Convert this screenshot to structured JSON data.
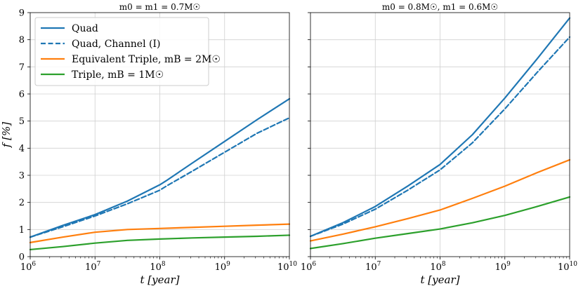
{
  "figure": {
    "ylabel": "f [%]",
    "xlabel": "t [year]"
  },
  "chart_data": [
    {
      "type": "line",
      "title": "m0 = m1 = 0.7M☉",
      "xlabel": "t [year]",
      "ylabel": "f [%]",
      "xscale": "log",
      "xlim_log10": [
        6,
        10
      ],
      "ylim": [
        0,
        9
      ],
      "yticks": [
        "0",
        "1",
        "2",
        "3",
        "4",
        "5",
        "6",
        "7",
        "8",
        "9"
      ],
      "xticks": [
        {
          "base": "10",
          "exp": "6"
        },
        {
          "base": "10",
          "exp": "7"
        },
        {
          "base": "10",
          "exp": "8"
        },
        {
          "base": "10",
          "exp": "9"
        },
        {
          "base": "10",
          "exp": "10"
        }
      ],
      "grid": true,
      "legend_position": "top-left",
      "series": [
        {
          "name": "Quad",
          "color": "#1f77b4",
          "dash": "solid",
          "x_log10": [
            6.0,
            6.5,
            7.0,
            7.5,
            8.0,
            8.1,
            8.5,
            9.0,
            9.5,
            10.0
          ],
          "y": [
            0.72,
            1.15,
            1.55,
            2.05,
            2.65,
            2.8,
            3.45,
            4.25,
            5.05,
            5.82
          ]
        },
        {
          "name": "Quad, Channel (I)",
          "color": "#1f77b4",
          "dash": "dashed",
          "x_log10": [
            6.0,
            6.5,
            7.0,
            7.5,
            8.0,
            8.1,
            8.5,
            9.0,
            9.5,
            10.0
          ],
          "y": [
            0.72,
            1.1,
            1.5,
            1.95,
            2.45,
            2.6,
            3.15,
            3.85,
            4.55,
            5.12
          ]
        },
        {
          "name": "Equivalent Triple, mB = 2M☉",
          "color": "#ff7f0e",
          "dash": "solid",
          "x_log10": [
            6.0,
            6.5,
            7.0,
            7.5,
            8.0,
            8.5,
            9.0,
            9.5,
            10.0
          ],
          "y": [
            0.52,
            0.72,
            0.9,
            1.0,
            1.04,
            1.08,
            1.12,
            1.16,
            1.2
          ]
        },
        {
          "name": "Triple, mB = 1M☉",
          "color": "#2ca02c",
          "dash": "solid",
          "x_log10": [
            6.0,
            6.5,
            7.0,
            7.5,
            8.0,
            8.5,
            9.0,
            9.5,
            10.0
          ],
          "y": [
            0.26,
            0.37,
            0.5,
            0.6,
            0.65,
            0.69,
            0.72,
            0.75,
            0.79
          ]
        }
      ]
    },
    {
      "type": "line",
      "title": "m0 = 0.8M☉, m1 = 0.6M☉",
      "xlabel": "t [year]",
      "ylabel": "",
      "xscale": "log",
      "xlim_log10": [
        6,
        10
      ],
      "ylim": [
        0,
        9
      ],
      "xticks": [
        {
          "base": "10",
          "exp": "6"
        },
        {
          "base": "10",
          "exp": "7"
        },
        {
          "base": "10",
          "exp": "8"
        },
        {
          "base": "10",
          "exp": "9"
        },
        {
          "base": "10",
          "exp": "10"
        }
      ],
      "grid": true,
      "series": [
        {
          "name": "Quad",
          "color": "#1f77b4",
          "dash": "solid",
          "x_log10": [
            6.0,
            6.5,
            7.0,
            7.5,
            8.0,
            8.5,
            9.0,
            9.5,
            10.0
          ],
          "y": [
            0.75,
            1.25,
            1.85,
            2.6,
            3.4,
            4.5,
            5.85,
            7.3,
            8.8
          ]
        },
        {
          "name": "Quad, Channel (I)",
          "color": "#1f77b4",
          "dash": "dashed",
          "x_log10": [
            6.0,
            6.5,
            7.0,
            7.5,
            8.0,
            8.5,
            9.0,
            9.5,
            10.0
          ],
          "y": [
            0.75,
            1.2,
            1.75,
            2.45,
            3.2,
            4.2,
            5.45,
            6.8,
            8.1
          ]
        },
        {
          "name": "Equivalent Triple, mB = 2M☉",
          "color": "#ff7f0e",
          "dash": "solid",
          "x_log10": [
            6.0,
            6.5,
            7.0,
            7.5,
            8.0,
            8.5,
            9.0,
            9.5,
            10.0
          ],
          "y": [
            0.58,
            0.83,
            1.1,
            1.4,
            1.72,
            2.15,
            2.6,
            3.1,
            3.57
          ]
        },
        {
          "name": "Triple, mB = 1M☉",
          "color": "#2ca02c",
          "dash": "solid",
          "x_log10": [
            6.0,
            6.5,
            7.0,
            7.5,
            8.0,
            8.5,
            9.0,
            9.5,
            10.0
          ],
          "y": [
            0.3,
            0.48,
            0.68,
            0.85,
            1.02,
            1.25,
            1.52,
            1.85,
            2.2
          ]
        }
      ]
    }
  ],
  "legend": [
    {
      "label": "Quad",
      "color": "#1f77b4",
      "dash": "solid"
    },
    {
      "label": "Quad, Channel (I)",
      "color": "#1f77b4",
      "dash": "dashed"
    },
    {
      "label": "Equivalent Triple, mB = 2M☉",
      "color": "#ff7f0e",
      "dash": "solid"
    },
    {
      "label": "Triple, mB = 1M☉",
      "color": "#2ca02c",
      "dash": "solid"
    }
  ]
}
